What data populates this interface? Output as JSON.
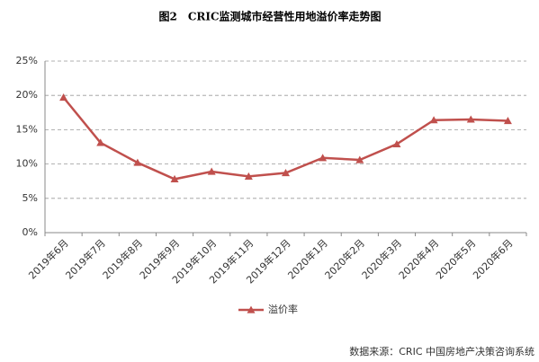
{
  "chart_data": {
    "type": "line",
    "title": "图2　CRIC监测城市经营性用地溢价率走势图",
    "source": "数据来源：CRIC 中国房地产决策咨询系统",
    "categories": [
      "2019年6月",
      "2019年7月",
      "2019年8月",
      "2019年9月",
      "2019年10月",
      "2019年11月",
      "2019年12月",
      "2020年1月",
      "2020年2月",
      "2020年3月",
      "2020年4月",
      "2020年5月",
      "2020年6月"
    ],
    "series": [
      {
        "name": "溢价率",
        "color": "#c0504d",
        "values": [
          19.7,
          13.1,
          10.2,
          7.8,
          8.9,
          8.2,
          8.7,
          10.9,
          10.6,
          12.9,
          16.4,
          16.5,
          16.3
        ]
      }
    ],
    "ylim": [
      0,
      25
    ],
    "yticks": [
      {
        "value": 0,
        "label": "0%"
      },
      {
        "value": 5,
        "label": "5%"
      },
      {
        "value": 10,
        "label": "10%"
      },
      {
        "value": 15,
        "label": "15%"
      },
      {
        "value": 20,
        "label": "20%"
      },
      {
        "value": 25,
        "label": "25%"
      }
    ],
    "grid": true
  }
}
